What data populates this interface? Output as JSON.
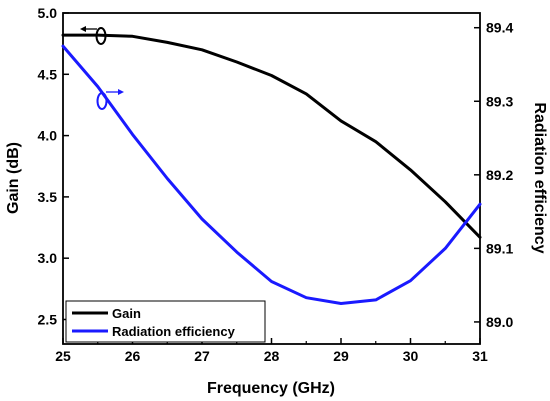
{
  "chart_data": {
    "type": "line",
    "xlabel": "Frequency (GHz)",
    "ylabel_left": "Gain (dB)",
    "ylabel_right": "Radiation efficiency",
    "xlim": [
      25,
      31
    ],
    "ylim_left": [
      2.3,
      5.0
    ],
    "ylim_right": [
      88.97,
      89.42
    ],
    "x_ticks": [
      "25",
      "26",
      "27",
      "28",
      "29",
      "30",
      "31"
    ],
    "y_left_ticks": [
      "2.5",
      "3.0",
      "3.5",
      "4.0",
      "4.5",
      "5.0"
    ],
    "y_right_ticks": [
      "89.0",
      "89.1",
      "89.2",
      "89.3",
      "89.4"
    ],
    "series": [
      {
        "name": "Gain",
        "axis": "left",
        "color": "#000000",
        "x": [
          25,
          25.5,
          26,
          26.5,
          27,
          27.5,
          28,
          28.5,
          29,
          29.5,
          30,
          30.5,
          31
        ],
        "values": [
          4.82,
          4.82,
          4.81,
          4.76,
          4.7,
          4.6,
          4.49,
          4.34,
          4.12,
          3.95,
          3.72,
          3.46,
          3.17
        ]
      },
      {
        "name": "Radiation efficiency",
        "axis": "right",
        "color": "#1a1aff",
        "x": [
          25,
          25.5,
          26,
          26.5,
          27,
          27.5,
          28,
          28.5,
          29,
          29.5,
          30,
          30.5,
          31
        ],
        "values": [
          89.375,
          89.32,
          89.255,
          89.195,
          89.14,
          89.095,
          89.055,
          89.033,
          89.025,
          89.03,
          89.056,
          89.1,
          89.16
        ]
      }
    ],
    "legend_position": "bottom-left",
    "grid": false
  }
}
